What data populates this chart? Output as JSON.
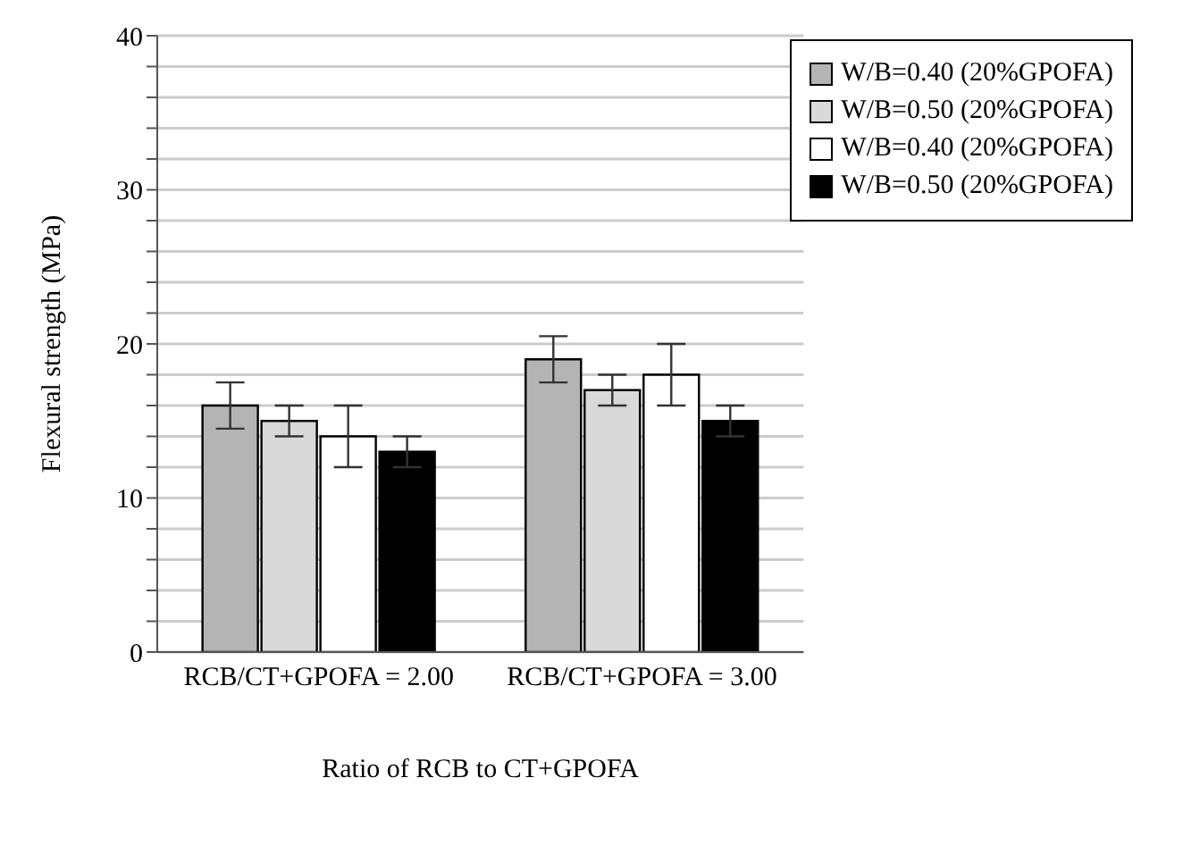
{
  "chart_data": {
    "type": "bar",
    "xlabel": "Ratio of RCB to CT+GPOFA",
    "ylabel": "Flexural strength (MPa)",
    "categories": [
      "RCB/CT+GPOFA = 2.00",
      "RCB/CT+GPOFA = 3.00"
    ],
    "series": [
      {
        "name": "W/B=0.40 (20%GPOFA)",
        "color": "#b4b4b4",
        "values": [
          16,
          19
        ],
        "errors": [
          1.5,
          1.5
        ]
      },
      {
        "name": "W/B=0.50 (20%GPOFA)",
        "color": "#d9d9d9",
        "values": [
          15,
          17
        ],
        "errors": [
          1,
          1
        ]
      },
      {
        "name": "W/B=0.40 (20%GPOFA)",
        "color": "#ffffff",
        "values": [
          14,
          18
        ],
        "errors": [
          2,
          2
        ]
      },
      {
        "name": "W/B=0.50 (20%GPOFA)",
        "color": "#000000",
        "values": [
          13,
          15
        ],
        "errors": [
          1,
          1
        ]
      }
    ],
    "ylim": [
      0,
      40
    ],
    "yticks": [
      0,
      {
        "value": 2,
        "label": null
      },
      {
        "value": 4,
        "label": null
      },
      {
        "value": 6,
        "label": null
      },
      {
        "value": 8,
        "label": null
      },
      10,
      {
        "value": 12,
        "label": null
      },
      {
        "value": 14,
        "label": null
      },
      {
        "value": 16,
        "label": null
      },
      {
        "value": 18,
        "label": null
      },
      20,
      {
        "value": 22,
        "label": null
      },
      {
        "value": 24,
        "label": null
      },
      {
        "value": 26,
        "label": null
      },
      {
        "value": 28,
        "label": null
      },
      30,
      {
        "value": 32,
        "label": null
      },
      {
        "value": 34,
        "label": null
      },
      {
        "value": 36,
        "label": null
      },
      {
        "value": 38,
        "label": null
      },
      40
    ],
    "grid": "y",
    "legend": "top right"
  }
}
